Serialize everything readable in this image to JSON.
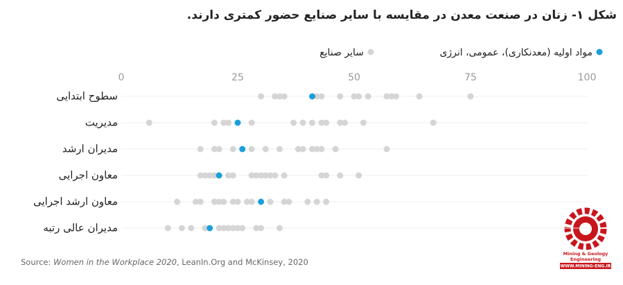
{
  "chart_data": {
    "type": "dot",
    "title": "شکل ۱- زنان در صنعت معدن در مقایسه با سایر صنایع حضور کمتری دارند.",
    "categories": [
      "سطوح ابتدایی",
      "مدیریت",
      "مدیران ارشد",
      "معاون اجرایی",
      "معاون ارشد اجرایی",
      "مدیران عالی رتبه"
    ],
    "series": [
      {
        "name": "مواد اولیه (معدنکاری)، عمومی، انرژی",
        "color": "#1a9fdb",
        "values": [
          41,
          25,
          26,
          21,
          30,
          19
        ]
      },
      {
        "name": "سایر صنایع",
        "color": "#d5d5d5",
        "values": [
          [
            30,
            33,
            34,
            35,
            42,
            43,
            47,
            50,
            51,
            53,
            57,
            58,
            59,
            64,
            75
          ],
          [
            6,
            20,
            22,
            23,
            28,
            37,
            39,
            41,
            43,
            44,
            47,
            48,
            52,
            67
          ],
          [
            17,
            20,
            21,
            24,
            28,
            31,
            34,
            38,
            39,
            41,
            42,
            43,
            46,
            57
          ],
          [
            17,
            18,
            19,
            20,
            23,
            24,
            28,
            29,
            30,
            31,
            32,
            33,
            35,
            43,
            44,
            47,
            51
          ],
          [
            12,
            16,
            17,
            20,
            21,
            22,
            24,
            25,
            27,
            28,
            32,
            35,
            36,
            40,
            42,
            44
          ],
          [
            10,
            13,
            15,
            18,
            21,
            22,
            23,
            24,
            25,
            26,
            29,
            30,
            34
          ]
        ]
      }
    ],
    "xlim": [
      0,
      100
    ],
    "xticks": [
      0,
      25,
      50,
      75,
      100
    ],
    "source": {
      "prefix": "Source:",
      "title": "Women in the Workplace 2020",
      "rest": ", LeanIn.Org and McKinsey, 2020"
    },
    "logo": {
      "line1": "Mining & Geology",
      "line2": "Engineering",
      "url": "WWW.MINING-ENG.IR"
    }
  }
}
